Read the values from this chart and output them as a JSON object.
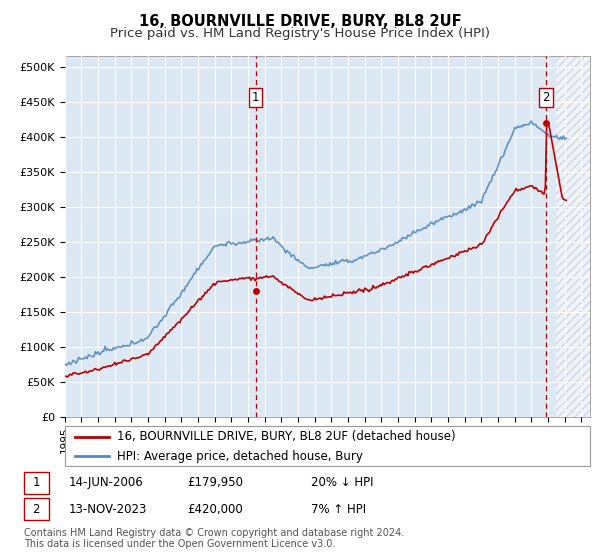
{
  "title": "16, BOURNVILLE DRIVE, BURY, BL8 2UF",
  "subtitle": "Price paid vs. HM Land Registry's House Price Index (HPI)",
  "ylabel_ticks": [
    "£0",
    "£50K",
    "£100K",
    "£150K",
    "£200K",
    "£250K",
    "£300K",
    "£350K",
    "£400K",
    "£450K",
    "£500K"
  ],
  "ytick_values": [
    0,
    50000,
    100000,
    150000,
    200000,
    250000,
    300000,
    350000,
    400000,
    450000,
    500000
  ],
  "ylim": [
    0,
    515000
  ],
  "xlim_start": 1995.0,
  "xlim_end": 2026.5,
  "hpi_color": "#5588bb",
  "price_color": "#bb0000",
  "sale1_date": 2006.45,
  "sale1_price": 179950,
  "sale2_date": 2023.87,
  "sale2_price": 420000,
  "annotation1_label": "1",
  "annotation2_label": "2",
  "legend_line1": "16, BOURNVILLE DRIVE, BURY, BL8 2UF (detached house)",
  "legend_line2": "HPI: Average price, detached house, Bury",
  "table_row1": [
    "1",
    "14-JUN-2006",
    "£179,950",
    "20% ↓ HPI"
  ],
  "table_row2": [
    "2",
    "13-NOV-2023",
    "£420,000",
    "7% ↑ HPI"
  ],
  "footnote": "Contains HM Land Registry data © Crown copyright and database right 2024.\nThis data is licensed under the Open Government Licence v3.0.",
  "background_color": "#dde8f5",
  "grid_color": "#ffffff",
  "title_fontsize": 10.5,
  "subtitle_fontsize": 9.5,
  "tick_fontsize": 8,
  "legend_fontsize": 8.5,
  "table_fontsize": 8.5,
  "footnote_fontsize": 7
}
